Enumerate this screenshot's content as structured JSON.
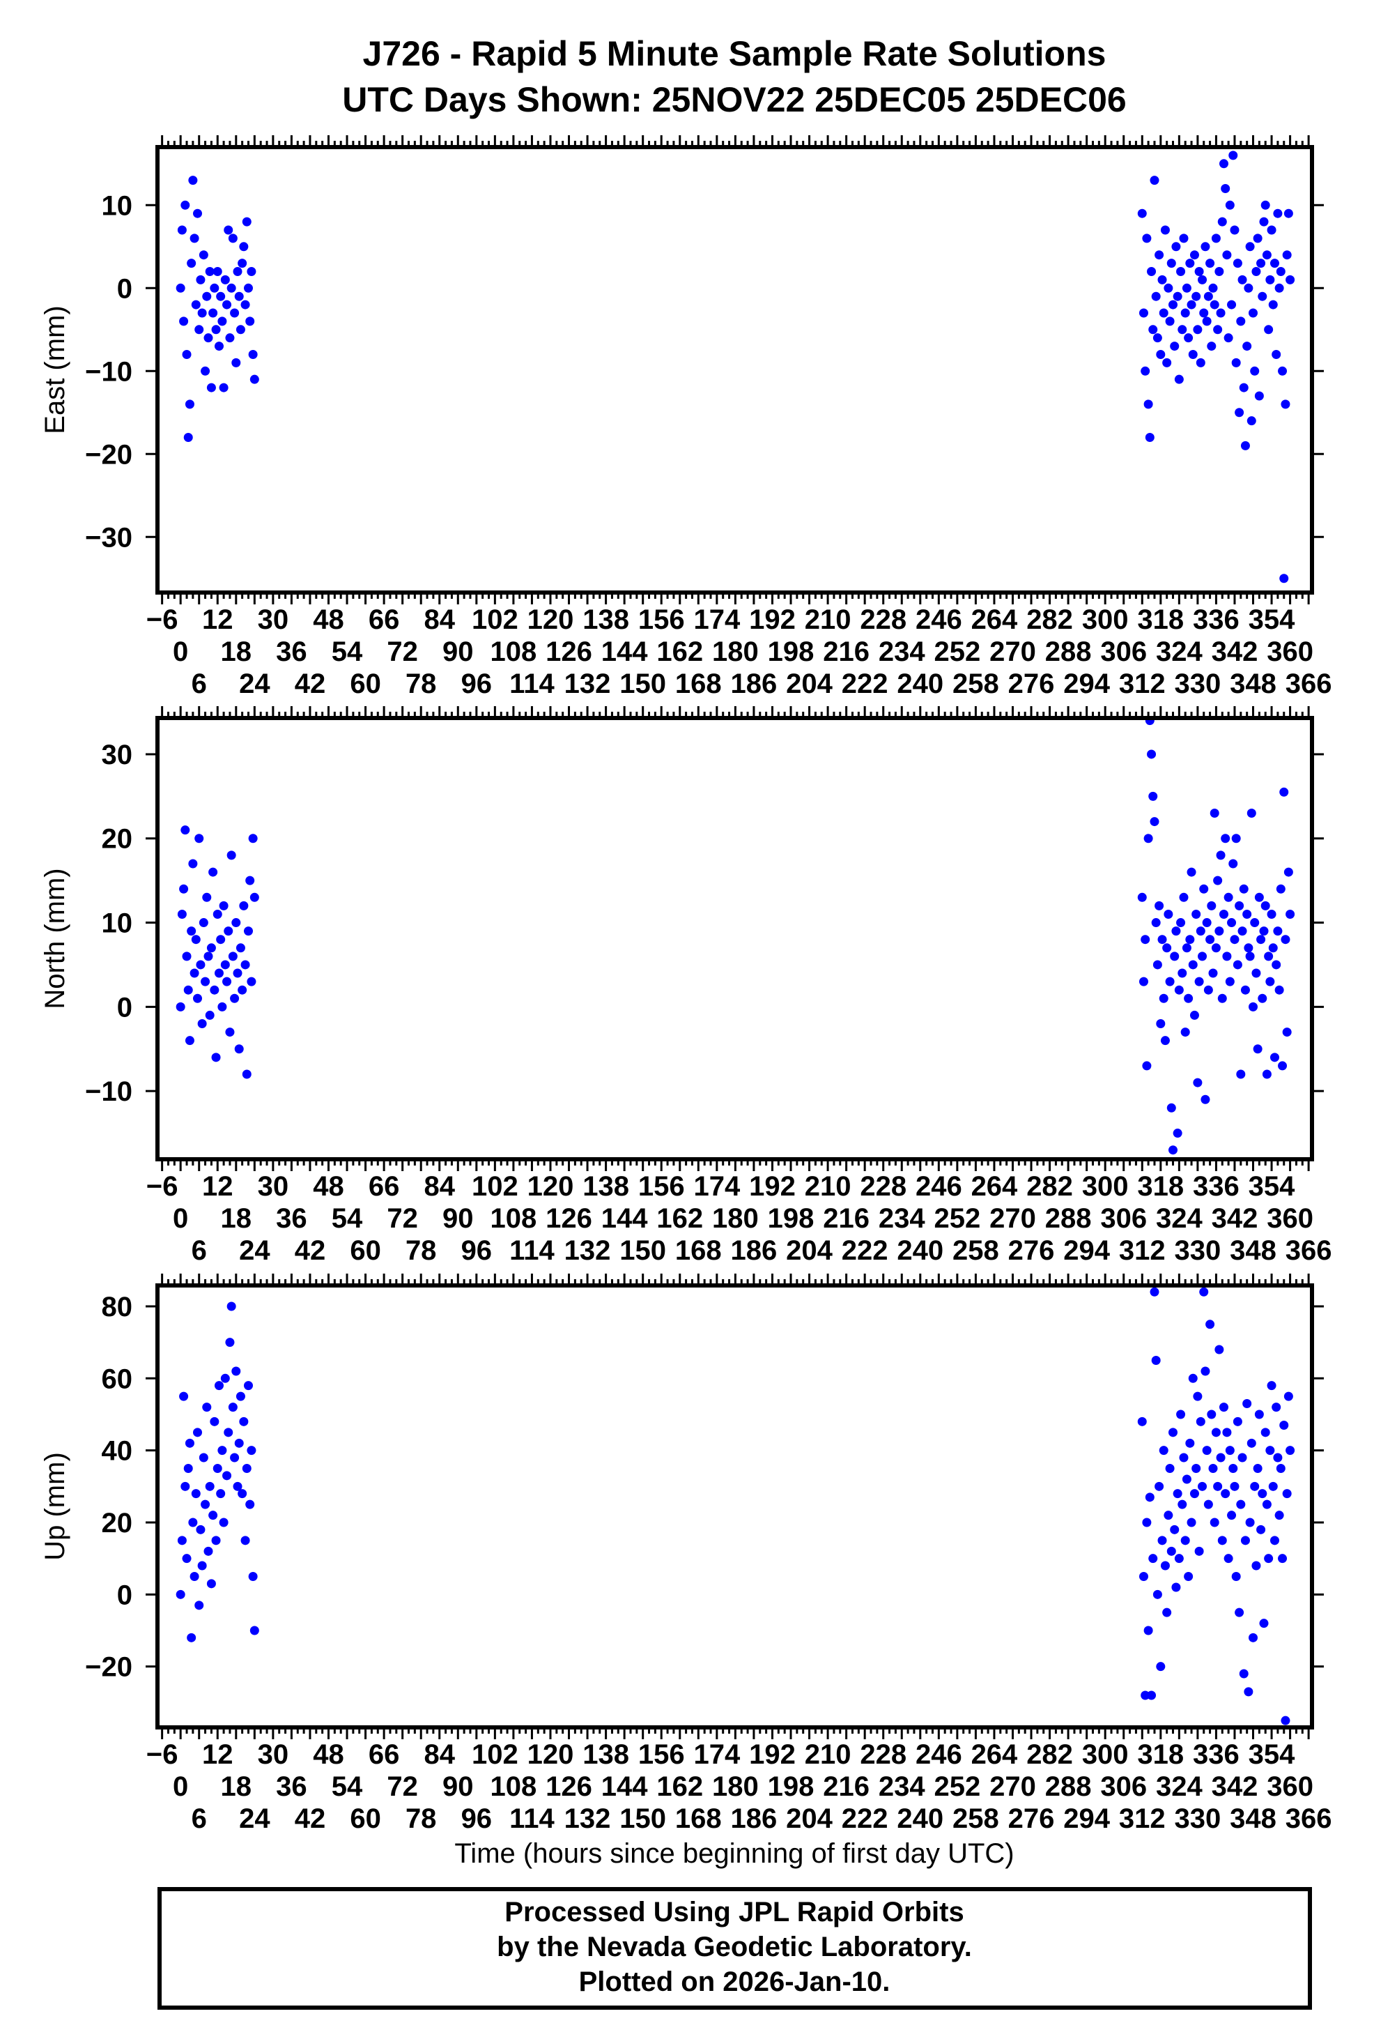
{
  "title": {
    "line1": "J726 - Rapid 5 Minute Sample Rate Solutions",
    "line2": "UTC Days Shown:  25NOV22 25DEC05 25DEC06"
  },
  "footer": {
    "line1": "Processed Using JPL Rapid Orbits",
    "line2": "by the Nevada Geodetic Laboratory.",
    "line3": "Plotted on 2026-Jan-10."
  },
  "colors": {
    "points": "#0000ff",
    "axes": "#000000"
  },
  "chart_data": [
    {
      "type": "scatter",
      "component": "East",
      "ylabel": "East (mm)",
      "xlabel": "Time (hours since beginning of first day UTC)",
      "show_xlabel": false,
      "xlim": [
        -7.5,
        367.1
      ],
      "ylim": [
        -36.7,
        17.0
      ],
      "grid": false,
      "yticks": [
        10,
        0,
        -10,
        -20,
        -30
      ],
      "ytick_labels": [
        "10",
        "0",
        "−10",
        "−20",
        "−30"
      ],
      "x_tick_labels": [
        "−6",
        "0",
        "6",
        "12",
        "18",
        "24",
        "30",
        "36",
        "42",
        "48",
        "54",
        "60",
        "66",
        "72",
        "78",
        "84",
        "90",
        "96",
        "102",
        "108",
        "114",
        "120",
        "126",
        "132",
        "138",
        "144",
        "150",
        "156",
        "162",
        "168",
        "174",
        "180",
        "186",
        "192",
        "198",
        "204",
        "210",
        "216",
        "222",
        "228",
        "234",
        "240",
        "246",
        "252",
        "258",
        "264",
        "270",
        "276",
        "282",
        "288",
        "294",
        "300",
        "306",
        "312",
        "318",
        "324",
        "330",
        "336",
        "342",
        "348",
        "354",
        "360",
        "366"
      ],
      "series": [
        {
          "name": "25NOV22",
          "t_start": 0,
          "t_step": 0.5,
          "values": [
            0,
            7,
            -4,
            10,
            -8,
            -18,
            -14,
            3,
            13,
            6,
            -2,
            9,
            -5,
            1,
            -3,
            4,
            -10,
            -1,
            -6,
            2,
            -12,
            -3,
            0,
            -5,
            2,
            -7,
            -1,
            -4,
            -12,
            1,
            -2,
            7,
            -6,
            0,
            6,
            -3,
            -9,
            2,
            -1,
            -5,
            3,
            5,
            -2,
            8,
            0,
            -4,
            2,
            -8,
            -11
          ]
        },
        {
          "name": "25DEC05-25DEC06",
          "t_start": 312,
          "t_step": 0.5,
          "values": [
            9,
            -3,
            -10,
            6,
            -14,
            -18,
            2,
            -5,
            13,
            -1,
            -6,
            4,
            -8,
            1,
            -3,
            7,
            -9,
            0,
            -4,
            3,
            -2,
            -7,
            5,
            -1,
            -11,
            2,
            -5,
            6,
            -3,
            0,
            -6,
            3,
            -2,
            -8,
            4,
            -1,
            -5,
            2,
            -9,
            1,
            -3,
            5,
            -4,
            -1,
            3,
            -7,
            0,
            -2,
            6,
            -5,
            2,
            -3,
            8,
            15,
            12,
            4,
            -6,
            10,
            -2,
            16,
            7,
            -9,
            3,
            -15,
            -4,
            1,
            -12,
            -19,
            -7,
            0,
            5,
            -16,
            -3,
            -10,
            2,
            6,
            -13,
            3,
            -1,
            8,
            10,
            4,
            -5,
            1,
            7,
            -2,
            3,
            -8,
            9,
            0,
            2,
            -10,
            -35,
            -14,
            4,
            9,
            1
          ]
        }
      ]
    },
    {
      "type": "scatter",
      "component": "North",
      "ylabel": "North (mm)",
      "xlabel": "Time (hours since beginning of first day UTC)",
      "show_xlabel": false,
      "xlim": [
        -7.5,
        367.1
      ],
      "ylim": [
        -18.1,
        34.3
      ],
      "grid": false,
      "yticks": [
        30,
        20,
        10,
        0,
        -10
      ],
      "ytick_labels": [
        "30",
        "20",
        "10",
        "0",
        "−10"
      ],
      "x_tick_labels": [
        "−6",
        "0",
        "6",
        "12",
        "18",
        "24",
        "30",
        "36",
        "42",
        "48",
        "54",
        "60",
        "66",
        "72",
        "78",
        "84",
        "90",
        "96",
        "102",
        "108",
        "114",
        "120",
        "126",
        "132",
        "138",
        "144",
        "150",
        "156",
        "162",
        "168",
        "174",
        "180",
        "186",
        "192",
        "198",
        "204",
        "210",
        "216",
        "222",
        "228",
        "234",
        "240",
        "246",
        "252",
        "258",
        "264",
        "270",
        "276",
        "282",
        "288",
        "294",
        "300",
        "306",
        "312",
        "318",
        "324",
        "330",
        "336",
        "342",
        "348",
        "354",
        "360",
        "366"
      ],
      "series": [
        {
          "name": "25NOV22",
          "t_start": 0,
          "t_step": 0.5,
          "values": [
            0,
            11,
            14,
            21,
            6,
            2,
            -4,
            9,
            17,
            4,
            8,
            1,
            20,
            5,
            -2,
            10,
            3,
            13,
            6,
            -1,
            7,
            16,
            2,
            -6,
            11,
            4,
            8,
            0,
            12,
            5,
            3,
            9,
            -3,
            18,
            6,
            1,
            10,
            4,
            -5,
            7,
            2,
            12,
            5,
            -8,
            9,
            15,
            3,
            20,
            13
          ]
        },
        {
          "name": "25DEC05-25DEC06",
          "t_start": 312,
          "t_step": 0.5,
          "values": [
            13,
            3,
            8,
            -7,
            20,
            34,
            30,
            25,
            22,
            10,
            5,
            12,
            -2,
            8,
            1,
            -4,
            7,
            11,
            3,
            -12,
            -17,
            6,
            9,
            -15,
            2,
            10,
            4,
            13,
            -3,
            7,
            1,
            8,
            16,
            5,
            -1,
            11,
            -9,
            3,
            9,
            6,
            14,
            -11,
            10,
            2,
            8,
            12,
            4,
            23,
            7,
            15,
            9,
            18,
            1,
            11,
            20,
            6,
            13,
            3,
            10,
            17,
            8,
            20,
            5,
            12,
            -8,
            9,
            14,
            2,
            11,
            7,
            6,
            23,
            0,
            10,
            4,
            -5,
            13,
            8,
            1,
            9,
            12,
            -8,
            6,
            3,
            11,
            7,
            -6,
            5,
            9,
            2,
            14,
            -7,
            25.5,
            8,
            -3,
            16,
            11
          ]
        }
      ]
    },
    {
      "type": "scatter",
      "component": "Up",
      "ylabel": "Up (mm)",
      "xlabel": "Time (hours since beginning of first day UTC)",
      "show_xlabel": true,
      "xlim": [
        -7.5,
        367.1
      ],
      "ylim": [
        -36.9,
        85.8
      ],
      "grid": false,
      "yticks": [
        80,
        60,
        40,
        20,
        0,
        -20
      ],
      "ytick_labels": [
        "80",
        "60",
        "40",
        "20",
        "0",
        "−20"
      ],
      "x_tick_labels": [
        "−6",
        "0",
        "6",
        "12",
        "18",
        "24",
        "30",
        "36",
        "42",
        "48",
        "54",
        "60",
        "66",
        "72",
        "78",
        "84",
        "90",
        "96",
        "102",
        "108",
        "114",
        "120",
        "126",
        "132",
        "138",
        "144",
        "150",
        "156",
        "162",
        "168",
        "174",
        "180",
        "186",
        "192",
        "198",
        "204",
        "210",
        "216",
        "222",
        "228",
        "234",
        "240",
        "246",
        "252",
        "258",
        "264",
        "270",
        "276",
        "282",
        "288",
        "294",
        "300",
        "306",
        "312",
        "318",
        "324",
        "330",
        "336",
        "342",
        "348",
        "354",
        "360",
        "366"
      ],
      "series": [
        {
          "name": "25NOV22",
          "t_start": 0,
          "t_step": 0.5,
          "values": [
            0,
            15,
            55,
            30,
            10,
            35,
            42,
            -12,
            20,
            5,
            28,
            45,
            -3,
            18,
            8,
            38,
            25,
            52,
            12,
            30,
            3,
            22,
            48,
            15,
            35,
            58,
            28,
            40,
            20,
            60,
            33,
            45,
            70,
            80,
            52,
            38,
            62,
            30,
            42,
            55,
            28,
            48,
            15,
            35,
            58,
            25,
            40,
            5,
            -10
          ]
        },
        {
          "name": "25DEC05-25DEC06",
          "t_start": 312,
          "t_step": 0.5,
          "values": [
            48,
            5,
            -28,
            20,
            -10,
            27,
            -28,
            10,
            84,
            65,
            0,
            30,
            -20,
            15,
            40,
            8,
            -5,
            22,
            35,
            12,
            45,
            18,
            2,
            28,
            10,
            50,
            25,
            38,
            15,
            32,
            5,
            42,
            20,
            60,
            28,
            35,
            55,
            12,
            48,
            30,
            84,
            62,
            40,
            25,
            75,
            50,
            35,
            20,
            45,
            30,
            68,
            38,
            15,
            52,
            28,
            45,
            10,
            40,
            22,
            35,
            30,
            5,
            48,
            -5,
            25,
            38,
            -22,
            15,
            53,
            -27,
            20,
            42,
            -12,
            30,
            8,
            35,
            50,
            18,
            28,
            -8,
            45,
            25,
            10,
            40,
            58,
            30,
            15,
            52,
            38,
            22,
            35,
            10,
            47,
            -35,
            28,
            55,
            40
          ]
        }
      ]
    }
  ]
}
